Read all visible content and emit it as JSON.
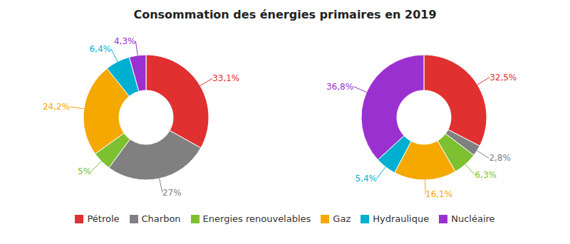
{
  "chart_data": [
    {
      "type": "pie",
      "title": "Consommation des énergies primaires en 2019",
      "categories": [
        "Pétrole",
        "Charbon",
        "Energies renouvelables",
        "Gaz",
        "Hydraulique",
        "Nucléaire"
      ],
      "values": [
        33.1,
        27.0,
        5.0,
        24.2,
        6.4,
        4.3
      ],
      "value_labels": [
        "33,1%",
        "27%",
        "5%",
        "24,2%",
        "6,4%",
        "4,3%"
      ],
      "colors": [
        "#e03030",
        "#808080",
        "#7dc030",
        "#f5a800",
        "#00b0d0",
        "#9b30d0"
      ],
      "data_labels": true,
      "legend": "bottom"
    },
    {
      "type": "pie",
      "categories": [
        "Pétrole",
        "Charbon",
        "Energies renouvelables",
        "Gaz",
        "Hydraulique",
        "Nucléaire"
      ],
      "values": [
        32.5,
        2.8,
        6.3,
        16.1,
        5.4,
        36.8
      ],
      "value_labels": [
        "32,5%",
        "2,8%",
        "6,3%",
        "16,1%",
        "5,4%",
        "36,8%"
      ],
      "colors": [
        "#e03030",
        "#808080",
        "#7dc030",
        "#f5a800",
        "#00b0d0",
        "#9b30d0"
      ],
      "data_labels": true
    }
  ]
}
